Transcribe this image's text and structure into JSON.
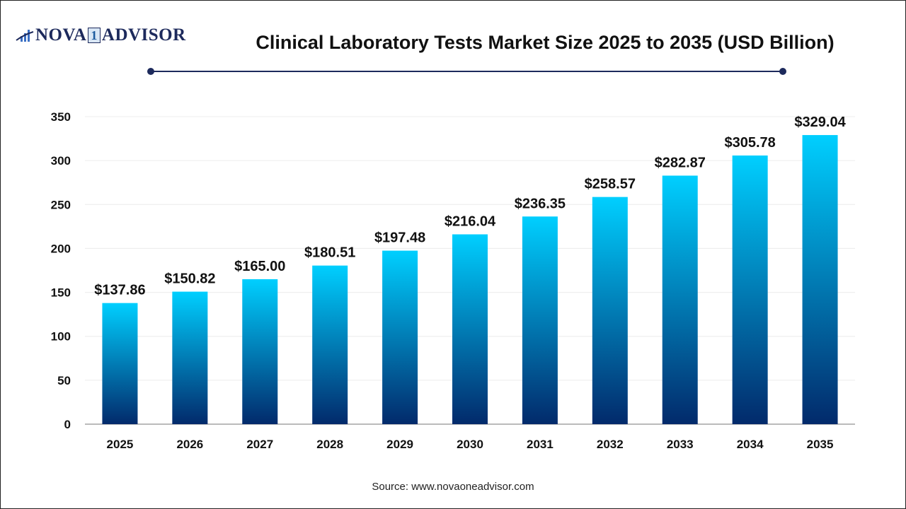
{
  "logo": {
    "text_left": "NOVA",
    "text_mid": "1",
    "text_right": "ADVISOR",
    "icon": "bar-chart-swoosh-icon"
  },
  "header": {
    "title": "Clinical Laboratory Tests Market Size 2025 to 2035 (USD Billion)"
  },
  "footer": {
    "source": "Source: www.novaoneadvisor.com"
  },
  "colors": {
    "bar_top": "#00cfff",
    "bar_bottom": "#022a6b",
    "title_rule": "#1d2a5c"
  },
  "chart_data": {
    "type": "bar",
    "title": "Clinical Laboratory Tests Market Size 2025 to 2035 (USD Billion)",
    "xlabel": "",
    "ylabel": "",
    "ylim": [
      0,
      350
    ],
    "yticks": [
      0,
      50,
      100,
      150,
      200,
      250,
      300,
      350
    ],
    "grid": true,
    "categories": [
      "2025",
      "2026",
      "2027",
      "2028",
      "2029",
      "2030",
      "2031",
      "2032",
      "2033",
      "2034",
      "2035"
    ],
    "values": [
      137.86,
      150.82,
      165.0,
      180.51,
      197.48,
      216.04,
      236.35,
      258.57,
      282.87,
      305.78,
      329.04
    ],
    "data_labels": [
      "$137.86",
      "$150.82",
      "$165.00",
      "$180.51",
      "$197.48",
      "$216.04",
      "$236.35",
      "$258.57",
      "$282.87",
      "$305.78",
      "$329.04"
    ]
  }
}
